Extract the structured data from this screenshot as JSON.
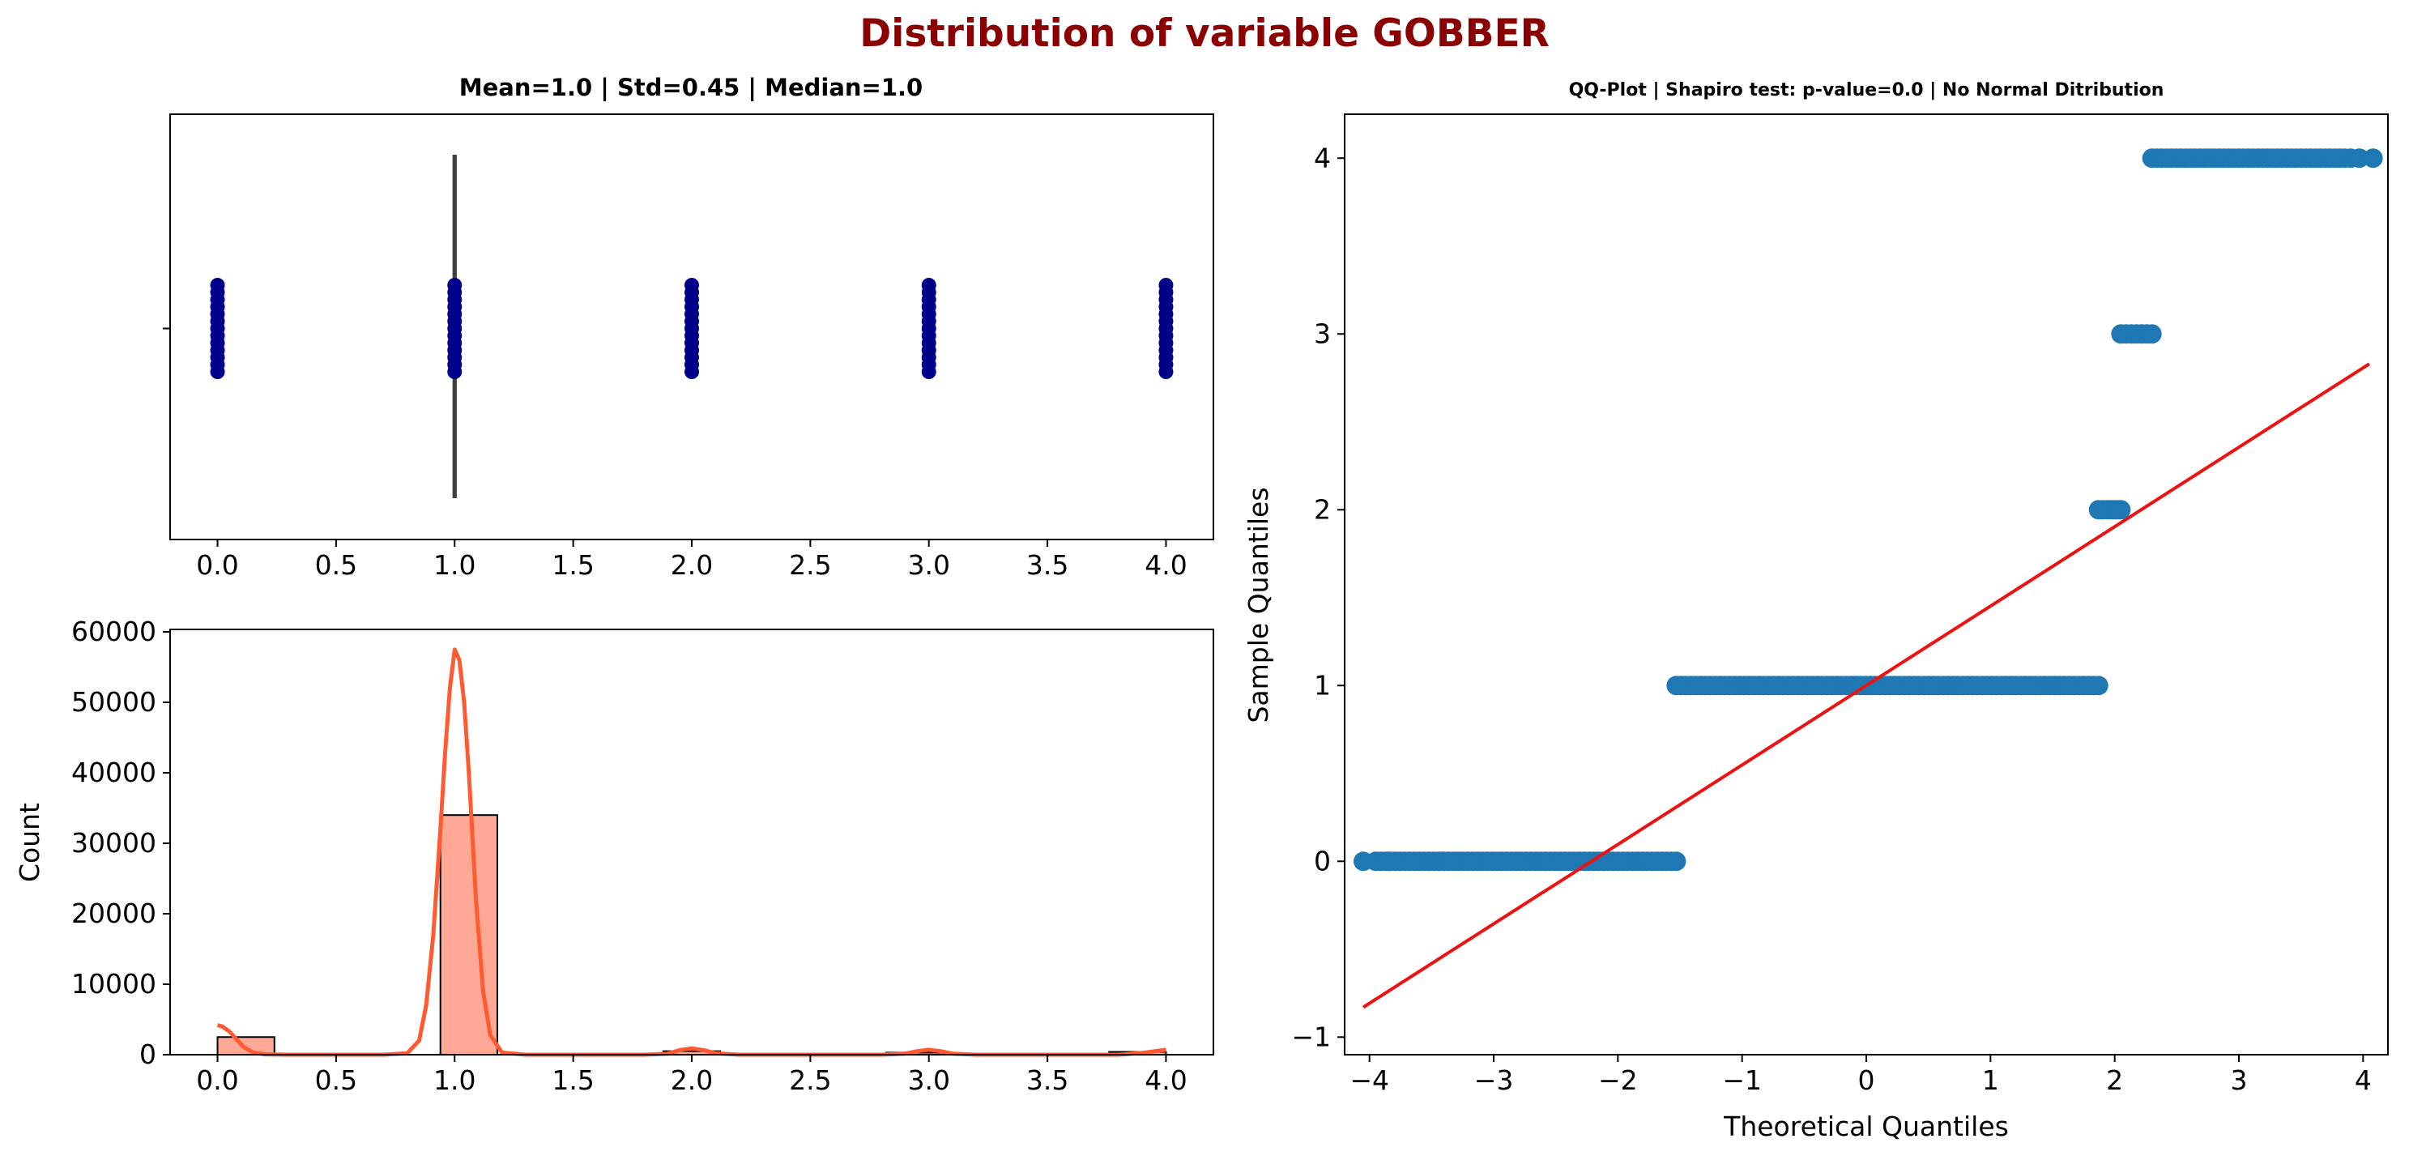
{
  "figure_title": "Distribution of variable GOBBER",
  "colors": {
    "title": "#8b0000",
    "strip_points": "#00008b",
    "box_line": "#3f3f3f",
    "hist_fill": "#ffa896",
    "kde_line": "#ff5a32",
    "qq_points": "#1f77b4",
    "qq_line": "#ee1111"
  },
  "chart_data": [
    {
      "type": "box",
      "title": "Mean=1.0 | Std=0.45 | Median=1.0",
      "xlim": [
        -0.2,
        4.2
      ],
      "xticks": [
        "0.0",
        "0.5",
        "1.0",
        "1.5",
        "2.0",
        "2.5",
        "3.0",
        "3.5",
        "4.0"
      ],
      "xtick_values": [
        0,
        0.5,
        1,
        1.5,
        2,
        2.5,
        3,
        3.5,
        4
      ],
      "box": {
        "q1": 1.0,
        "median": 1.0,
        "q3": 1.0,
        "whisker_low": 1.0,
        "whisker_high": 1.0
      },
      "strip_x_values": [
        0,
        1,
        2,
        3,
        4
      ]
    },
    {
      "type": "bar",
      "xlabel": "",
      "ylabel": "Count",
      "xlim": [
        -0.2,
        4.2
      ],
      "ylim": [
        0,
        60000
      ],
      "xticks": [
        "0.0",
        "0.5",
        "1.0",
        "1.5",
        "2.0",
        "2.5",
        "3.0",
        "3.5",
        "4.0"
      ],
      "xtick_values": [
        0,
        0.5,
        1,
        1.5,
        2,
        2.5,
        3,
        3.5,
        4
      ],
      "yticks": [
        "0",
        "10000",
        "20000",
        "30000",
        "40000",
        "50000",
        "60000"
      ],
      "ytick_values": [
        0,
        10000,
        20000,
        30000,
        40000,
        50000,
        60000
      ],
      "bins": [
        {
          "x0": 0.0,
          "x1": 0.24,
          "count": 2500
        },
        {
          "x0": 0.24,
          "x1": 0.47,
          "count": 0
        },
        {
          "x0": 0.47,
          "x1": 0.71,
          "count": 0
        },
        {
          "x0": 0.71,
          "x1": 0.94,
          "count": 0
        },
        {
          "x0": 0.94,
          "x1": 1.18,
          "count": 34000
        },
        {
          "x0": 1.18,
          "x1": 1.41,
          "count": 0
        },
        {
          "x0": 1.41,
          "x1": 1.65,
          "count": 0
        },
        {
          "x0": 1.65,
          "x1": 1.88,
          "count": 0
        },
        {
          "x0": 1.88,
          "x1": 2.12,
          "count": 500
        },
        {
          "x0": 2.12,
          "x1": 2.35,
          "count": 0
        },
        {
          "x0": 2.35,
          "x1": 2.59,
          "count": 0
        },
        {
          "x0": 2.59,
          "x1": 2.82,
          "count": 0
        },
        {
          "x0": 2.82,
          "x1": 3.06,
          "count": 300
        },
        {
          "x0": 3.06,
          "x1": 3.29,
          "count": 0
        },
        {
          "x0": 3.29,
          "x1": 3.53,
          "count": 0
        },
        {
          "x0": 3.53,
          "x1": 3.76,
          "count": 0
        },
        {
          "x0": 3.76,
          "x1": 4.0,
          "count": 400
        }
      ],
      "kde": {
        "x": [
          0,
          0.02,
          0.05,
          0.08,
          0.11,
          0.15,
          0.2,
          0.3,
          0.5,
          0.7,
          0.8,
          0.85,
          0.88,
          0.91,
          0.94,
          0.96,
          0.98,
          1.0,
          1.02,
          1.04,
          1.06,
          1.09,
          1.12,
          1.15,
          1.2,
          1.3,
          1.5,
          1.8,
          1.9,
          1.95,
          2.0,
          2.05,
          2.1,
          2.2,
          2.5,
          2.8,
          2.9,
          2.95,
          3.0,
          3.05,
          3.1,
          3.2,
          3.5,
          3.8,
          3.9,
          4.0
        ],
        "y": [
          4200,
          4000,
          3300,
          2200,
          1100,
          300,
          50,
          0,
          0,
          0,
          200,
          2000,
          7000,
          17000,
          32000,
          43000,
          52000,
          57500,
          56000,
          50000,
          40000,
          22000,
          9000,
          2800,
          300,
          0,
          0,
          0,
          150,
          650,
          900,
          650,
          200,
          0,
          0,
          0,
          150,
          500,
          700,
          500,
          150,
          0,
          0,
          0,
          250,
          700
        ]
      }
    },
    {
      "type": "scatter",
      "title": "QQ-Plot | Shapiro test: p-value=0.0 | No Normal Ditribution",
      "xlabel": "Theoretical Quantiles",
      "ylabel": "Sample Quantiles",
      "xlim": [
        -4.2,
        4.2
      ],
      "ylim": [
        -1.1,
        4.25
      ],
      "xticks": [
        "−4",
        "−3",
        "−2",
        "−1",
        "0",
        "1",
        "2",
        "3",
        "4"
      ],
      "xtick_values": [
        -4,
        -3,
        -2,
        -1,
        0,
        1,
        2,
        3,
        4
      ],
      "yticks": [
        "−1",
        "0",
        "1",
        "2",
        "3",
        "4"
      ],
      "ytick_values": [
        -1,
        0,
        1,
        2,
        3,
        4
      ],
      "point_runs": [
        {
          "y": 0,
          "x_start": -3.95,
          "x_end": -1.53
        },
        {
          "y": 1,
          "x_start": -1.53,
          "x_end": 1.87
        },
        {
          "y": 2,
          "x_start": 1.87,
          "x_end": 2.05
        },
        {
          "y": 3,
          "x_start": 2.05,
          "x_end": 2.3
        },
        {
          "y": 4,
          "x_start": 2.3,
          "x_end": 3.85
        }
      ],
      "outlier_points": [
        {
          "x": -4.05,
          "y": 0
        },
        {
          "x": -3.85,
          "y": 0
        },
        {
          "x": 3.9,
          "y": 4
        },
        {
          "x": 3.97,
          "y": 4
        },
        {
          "x": 4.08,
          "y": 4
        }
      ],
      "fit_line": {
        "x": [
          -4.05,
          4.05
        ],
        "y": [
          -0.83,
          2.83
        ]
      }
    }
  ]
}
